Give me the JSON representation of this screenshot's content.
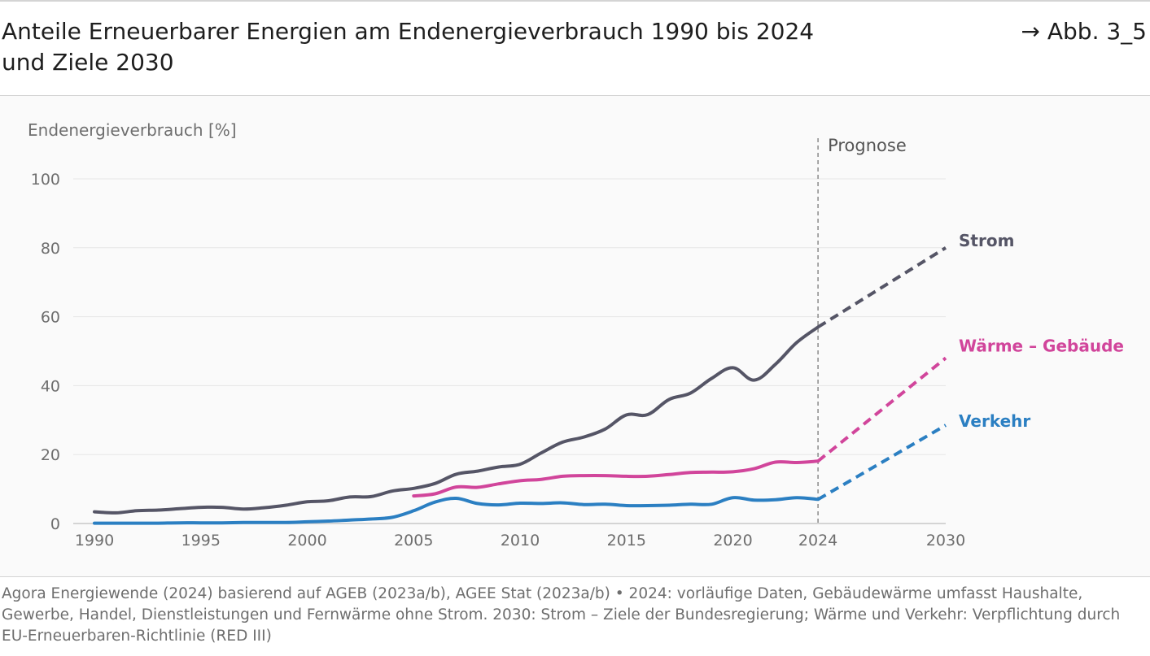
{
  "header": {
    "title_line1": "Anteile Erneuerbarer Energien am Endenergieverbrauch 1990 bis 2024",
    "title_line2": "und Ziele 2030",
    "figure_ref": "→ Abb. 3_5"
  },
  "source_text": "Agora Energiewende (2024) basierend auf AGEB (2023a/b), AGEE Stat (2023a/b) • 2024: vorläufige Daten, Gebäudewärme umfasst Haushalte, Gewerbe, Handel, Dienstleistungen und Fernwärme ohne Strom. 2030: Strom – Ziele der Bundesregierung; Wärme und Verkehr: Verpflichtung durch EU-Erneuerbaren-Richtlinie (RED III)",
  "colors": {
    "strom": "#555566",
    "waerme": "#d1459b",
    "verkehr": "#2b7fc2",
    "axis_text": "#6e6e6e",
    "grid": "#e6e6e6"
  },
  "chart_data": {
    "type": "line",
    "ylabel": "Endenergieverbrauch [%]",
    "xlabel": "",
    "xlim": [
      1990,
      2030
    ],
    "ylim": [
      0,
      100
    ],
    "x_ticks": [
      1990,
      1995,
      2000,
      2005,
      2010,
      2015,
      2020,
      2024,
      2030
    ],
    "y_ticks": [
      0,
      20,
      40,
      60,
      80,
      100
    ],
    "grid": "horizontal",
    "forecast_marker": {
      "x": 2024,
      "label": "Prognose"
    },
    "series": [
      {
        "name": "Strom",
        "color_key": "strom",
        "values": [
          [
            1990,
            3.4
          ],
          [
            1991,
            3.1
          ],
          [
            1992,
            3.7
          ],
          [
            1993,
            3.9
          ],
          [
            1994,
            4.3
          ],
          [
            1995,
            4.7
          ],
          [
            1996,
            4.7
          ],
          [
            1997,
            4.2
          ],
          [
            1998,
            4.6
          ],
          [
            1999,
            5.3
          ],
          [
            2000,
            6.3
          ],
          [
            2001,
            6.6
          ],
          [
            2002,
            7.7
          ],
          [
            2003,
            7.8
          ],
          [
            2004,
            9.4
          ],
          [
            2005,
            10.2
          ],
          [
            2006,
            11.6
          ],
          [
            2007,
            14.3
          ],
          [
            2008,
            15.2
          ],
          [
            2009,
            16.4
          ],
          [
            2010,
            17.2
          ],
          [
            2011,
            20.5
          ],
          [
            2012,
            23.6
          ],
          [
            2013,
            25.1
          ],
          [
            2014,
            27.4
          ],
          [
            2015,
            31.5
          ],
          [
            2016,
            31.6
          ],
          [
            2017,
            36.0
          ],
          [
            2018,
            37.8
          ],
          [
            2019,
            42.1
          ],
          [
            2020,
            45.2
          ],
          [
            2021,
            41.6
          ],
          [
            2022,
            46.2
          ],
          [
            2023,
            52.5
          ],
          [
            2024,
            57.0
          ]
        ],
        "target": [
          [
            2024,
            57.0
          ],
          [
            2030,
            80.0
          ]
        ]
      },
      {
        "name": "Wärme – Gebäude",
        "color_key": "waerme",
        "values": [
          [
            2005,
            8.0
          ],
          [
            2006,
            8.6
          ],
          [
            2007,
            10.6
          ],
          [
            2008,
            10.5
          ],
          [
            2009,
            11.5
          ],
          [
            2010,
            12.4
          ],
          [
            2011,
            12.8
          ],
          [
            2012,
            13.7
          ],
          [
            2013,
            13.9
          ],
          [
            2014,
            13.9
          ],
          [
            2015,
            13.7
          ],
          [
            2016,
            13.7
          ],
          [
            2017,
            14.2
          ],
          [
            2018,
            14.8
          ],
          [
            2019,
            14.9
          ],
          [
            2020,
            15.0
          ],
          [
            2021,
            15.9
          ],
          [
            2022,
            17.8
          ],
          [
            2023,
            17.7
          ],
          [
            2024,
            18.1
          ]
        ],
        "target": [
          [
            2024,
            18.1
          ],
          [
            2030,
            48.0
          ]
        ]
      },
      {
        "name": "Verkehr",
        "color_key": "verkehr",
        "values": [
          [
            1990,
            0.1
          ],
          [
            1991,
            0.1
          ],
          [
            1992,
            0.1
          ],
          [
            1993,
            0.1
          ],
          [
            1994,
            0.2
          ],
          [
            1995,
            0.2
          ],
          [
            1996,
            0.2
          ],
          [
            1997,
            0.3
          ],
          [
            1998,
            0.3
          ],
          [
            1999,
            0.3
          ],
          [
            2000,
            0.5
          ],
          [
            2001,
            0.7
          ],
          [
            2002,
            1.0
          ],
          [
            2003,
            1.3
          ],
          [
            2004,
            1.8
          ],
          [
            2005,
            3.7
          ],
          [
            2006,
            6.2
          ],
          [
            2007,
            7.3
          ],
          [
            2008,
            5.8
          ],
          [
            2009,
            5.4
          ],
          [
            2010,
            5.9
          ],
          [
            2011,
            5.8
          ],
          [
            2012,
            6.0
          ],
          [
            2013,
            5.5
          ],
          [
            2014,
            5.6
          ],
          [
            2015,
            5.2
          ],
          [
            2016,
            5.2
          ],
          [
            2017,
            5.3
          ],
          [
            2018,
            5.6
          ],
          [
            2019,
            5.6
          ],
          [
            2020,
            7.5
          ],
          [
            2021,
            6.8
          ],
          [
            2022,
            6.9
          ],
          [
            2023,
            7.5
          ],
          [
            2024,
            7.0
          ]
        ],
        "target": [
          [
            2024,
            7.0
          ],
          [
            2030,
            28.5
          ]
        ]
      }
    ]
  }
}
